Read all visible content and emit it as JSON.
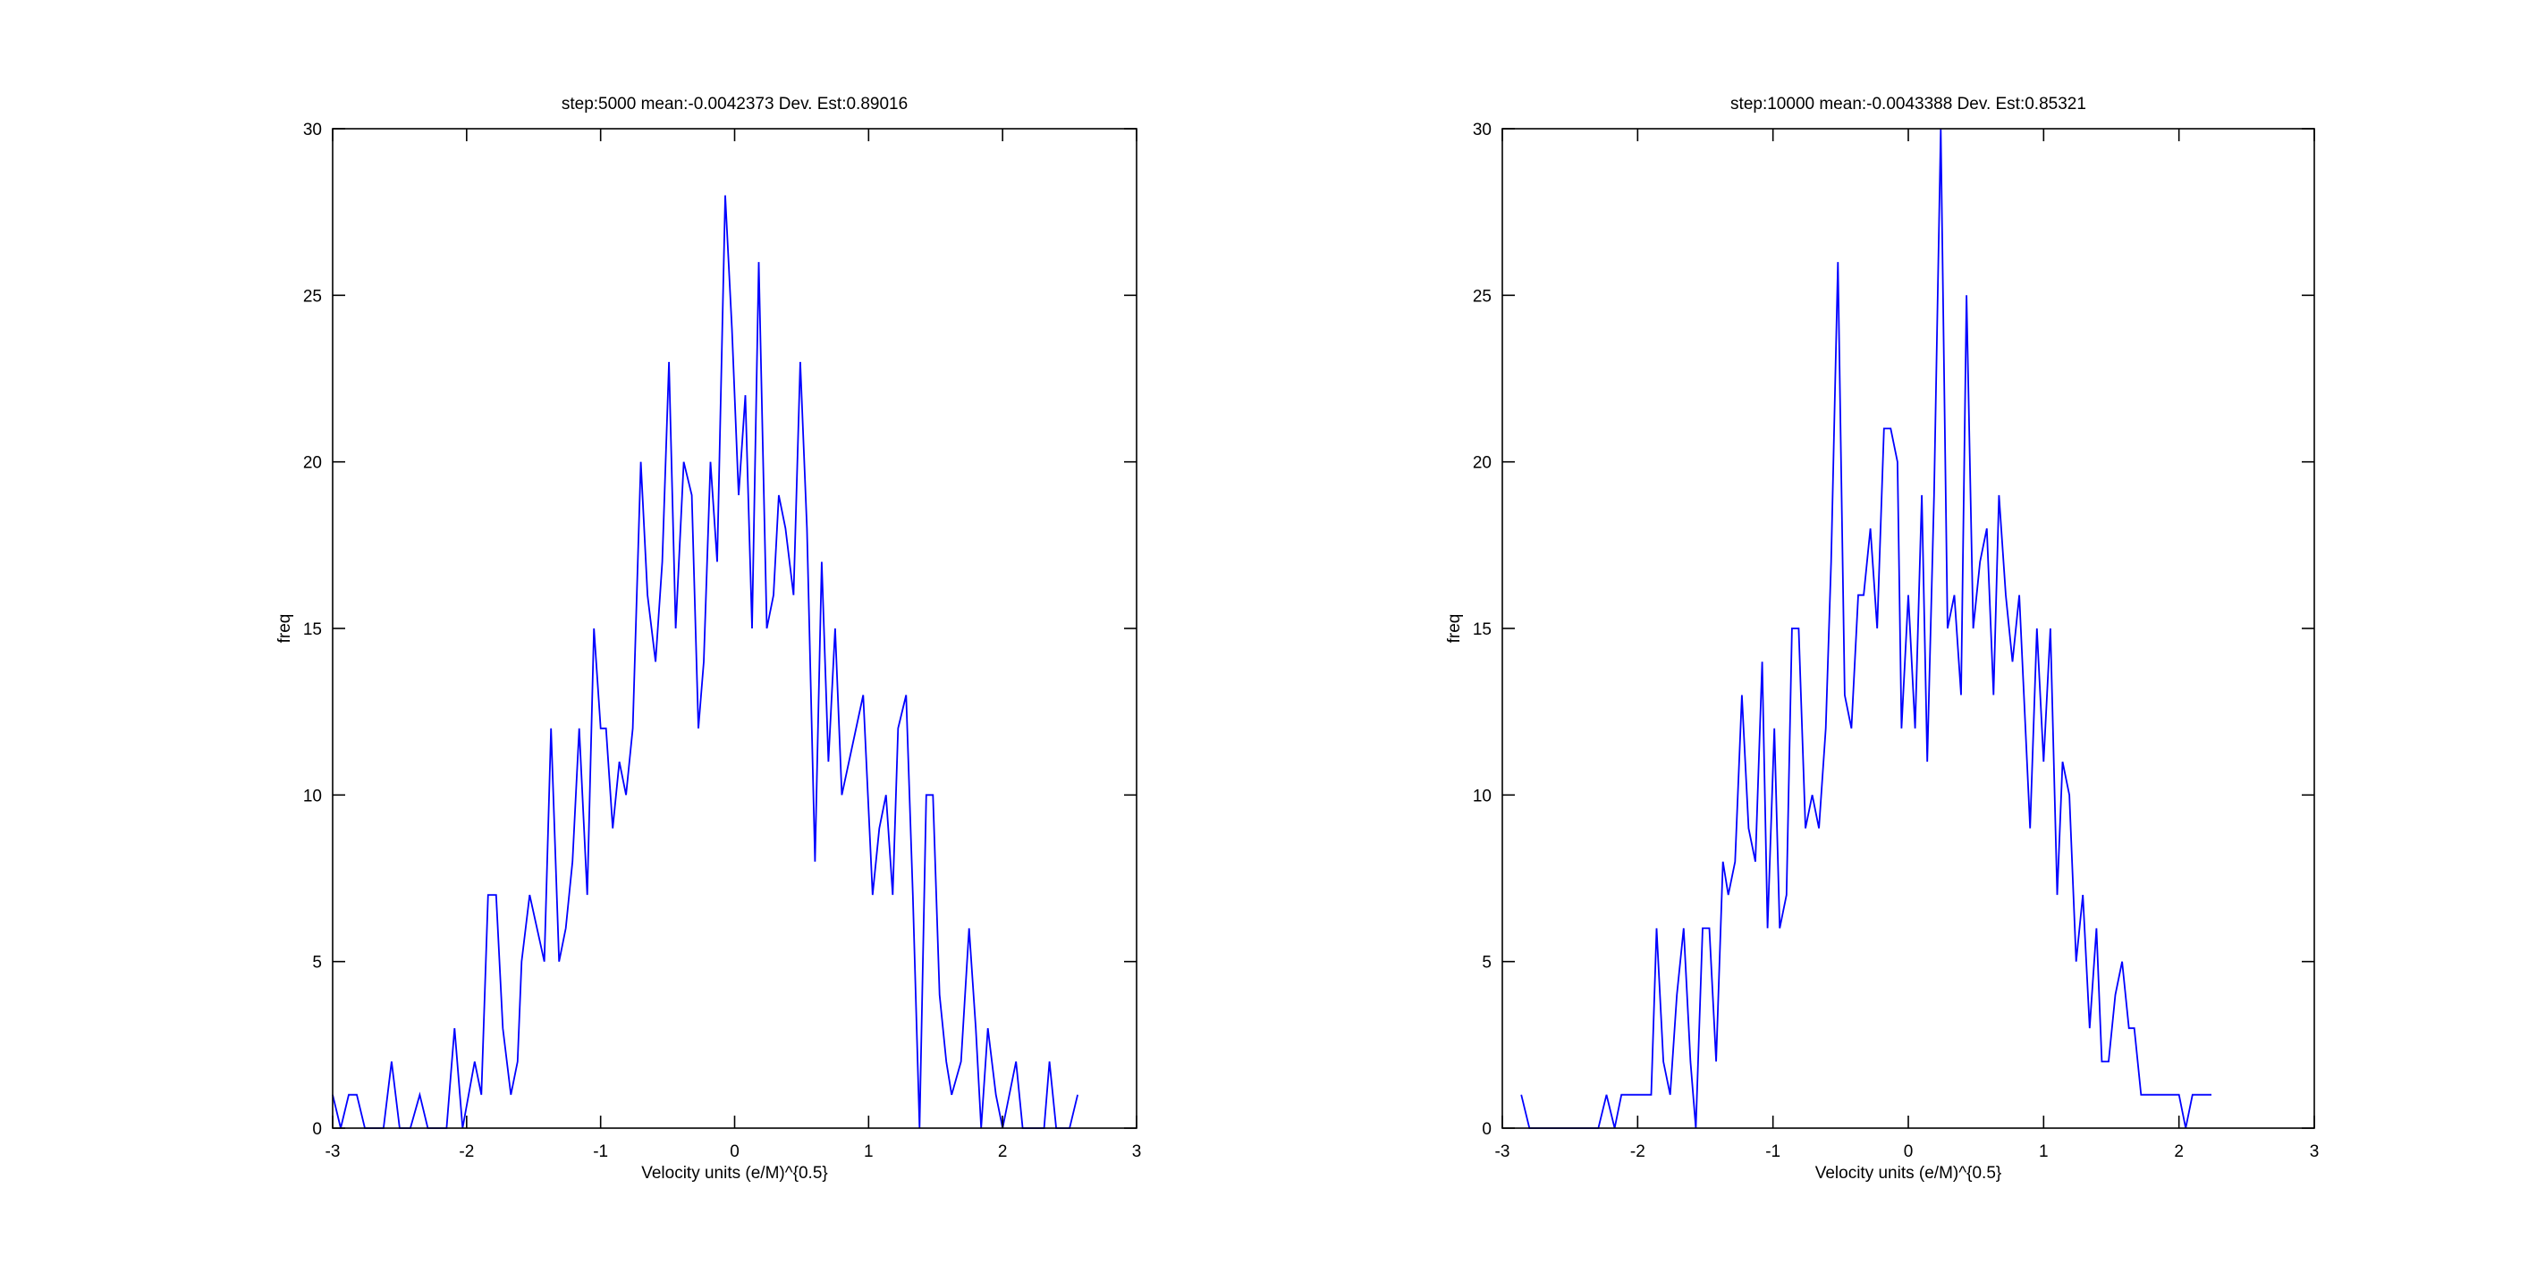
{
  "chart_data": [
    {
      "type": "line",
      "title": "step:5000 mean:-0.0042373 Dev. Est:0.89016",
      "xlabel": "Velocity units (e/M)^{0.5}",
      "ylabel": "freq",
      "color": "#0000ff",
      "xlim": [
        -3,
        3
      ],
      "ylim": [
        0,
        30
      ],
      "xticks": [
        -3,
        -2,
        -1,
        0,
        1,
        2,
        3
      ],
      "yticks": [
        0,
        5,
        10,
        15,
        20,
        25,
        30
      ],
      "x": [
        -3.0,
        -2.94,
        -2.88,
        -2.82,
        -2.76,
        -2.62,
        -2.56,
        -2.5,
        -2.42,
        -2.35,
        -2.29,
        -2.15,
        -2.09,
        -2.03,
        -1.94,
        -1.89,
        -1.84,
        -1.78,
        -1.73,
        -1.67,
        -1.62,
        -1.59,
        -1.53,
        -1.42,
        -1.37,
        -1.31,
        -1.26,
        -1.21,
        -1.16,
        -1.1,
        -1.05,
        -1.0,
        -0.96,
        -0.91,
        -0.86,
        -0.81,
        -0.76,
        -0.7,
        -0.65,
        -0.59,
        -0.54,
        -0.49,
        -0.44,
        -0.38,
        -0.32,
        -0.27,
        -0.23,
        -0.18,
        -0.13,
        -0.07,
        -0.02,
        0.03,
        0.08,
        0.13,
        0.18,
        0.24,
        0.29,
        0.33,
        0.38,
        0.44,
        0.49,
        0.54,
        0.6,
        0.65,
        0.7,
        0.75,
        0.8,
        0.96,
        1.03,
        1.08,
        1.13,
        1.18,
        1.22,
        1.28,
        1.33,
        1.38,
        1.43,
        1.48,
        1.53,
        1.58,
        1.62,
        1.69,
        1.75,
        1.8,
        1.84,
        1.89,
        1.95,
        2.0,
        2.1,
        2.15,
        2.31,
        2.35,
        2.4,
        2.5,
        2.56
      ],
      "values": [
        1,
        0,
        1,
        1,
        0,
        0,
        2,
        0,
        0,
        1,
        0,
        0,
        3,
        0,
        2,
        1,
        7,
        7,
        3,
        1,
        2,
        5,
        7,
        5,
        12,
        5,
        6,
        8,
        12,
        7,
        15,
        12,
        12,
        9,
        11,
        10,
        12,
        20,
        16,
        14,
        17,
        23,
        15,
        20,
        19,
        12,
        14,
        20,
        17,
        28,
        24,
        19,
        22,
        15,
        26,
        15,
        16,
        19,
        18,
        16,
        23,
        18,
        8,
        17,
        11,
        15,
        10,
        13,
        7,
        9,
        10,
        7,
        12,
        13,
        7,
        0,
        10,
        10,
        4,
        2,
        1,
        2,
        6,
        3,
        0,
        3,
        1,
        0,
        2,
        0,
        0,
        2,
        0,
        0,
        1
      ]
    },
    {
      "type": "line",
      "title": "step:10000 mean:-0.0043388 Dev. Est:0.85321",
      "xlabel": "Velocity units (e/M)^{0.5}",
      "ylabel": "freq",
      "color": "#0000ff",
      "xlim": [
        -3,
        3
      ],
      "ylim": [
        0,
        30
      ],
      "xticks": [
        -3,
        -2,
        -1,
        0,
        1,
        2,
        3
      ],
      "yticks": [
        0,
        5,
        10,
        15,
        20,
        25,
        30
      ],
      "x": [
        -2.86,
        -2.8,
        -2.29,
        -2.23,
        -2.17,
        -2.12,
        -1.9,
        -1.86,
        -1.81,
        -1.76,
        -1.71,
        -1.66,
        -1.61,
        -1.57,
        -1.52,
        -1.47,
        -1.42,
        -1.37,
        -1.33,
        -1.28,
        -1.23,
        -1.18,
        -1.13,
        -1.08,
        -1.04,
        -0.99,
        -0.95,
        -0.9,
        -0.86,
        -0.81,
        -0.76,
        -0.71,
        -0.66,
        -0.61,
        -0.57,
        -0.52,
        -0.47,
        -0.42,
        -0.37,
        -0.33,
        -0.28,
        -0.23,
        -0.18,
        -0.13,
        -0.08,
        -0.05,
        0.0,
        0.05,
        0.1,
        0.14,
        0.19,
        0.24,
        0.29,
        0.34,
        0.39,
        0.43,
        0.48,
        0.53,
        0.58,
        0.63,
        0.67,
        0.72,
        0.77,
        0.82,
        0.9,
        0.95,
        1.0,
        1.05,
        1.1,
        1.14,
        1.19,
        1.24,
        1.29,
        1.34,
        1.39,
        1.43,
        1.48,
        1.53,
        1.58,
        1.63,
        1.67,
        1.72,
        2.0,
        2.05,
        2.1,
        2.24
      ],
      "values": [
        1,
        0,
        0,
        1,
        0,
        1,
        1,
        6,
        2,
        1,
        4,
        6,
        2,
        0,
        6,
        6,
        2,
        8,
        7,
        8,
        13,
        9,
        8,
        14,
        6,
        12,
        6,
        7,
        15,
        15,
        9,
        10,
        9,
        12,
        17,
        26,
        13,
        12,
        16,
        16,
        18,
        15,
        21,
        21,
        20,
        12,
        16,
        12,
        19,
        11,
        19,
        30,
        15,
        16,
        13,
        25,
        15,
        17,
        18,
        13,
        19,
        16,
        14,
        16,
        9,
        15,
        11,
        15,
        7,
        11,
        10,
        5,
        7,
        3,
        6,
        2,
        2,
        4,
        5,
        3,
        3,
        1,
        1,
        0,
        1,
        1
      ]
    }
  ]
}
